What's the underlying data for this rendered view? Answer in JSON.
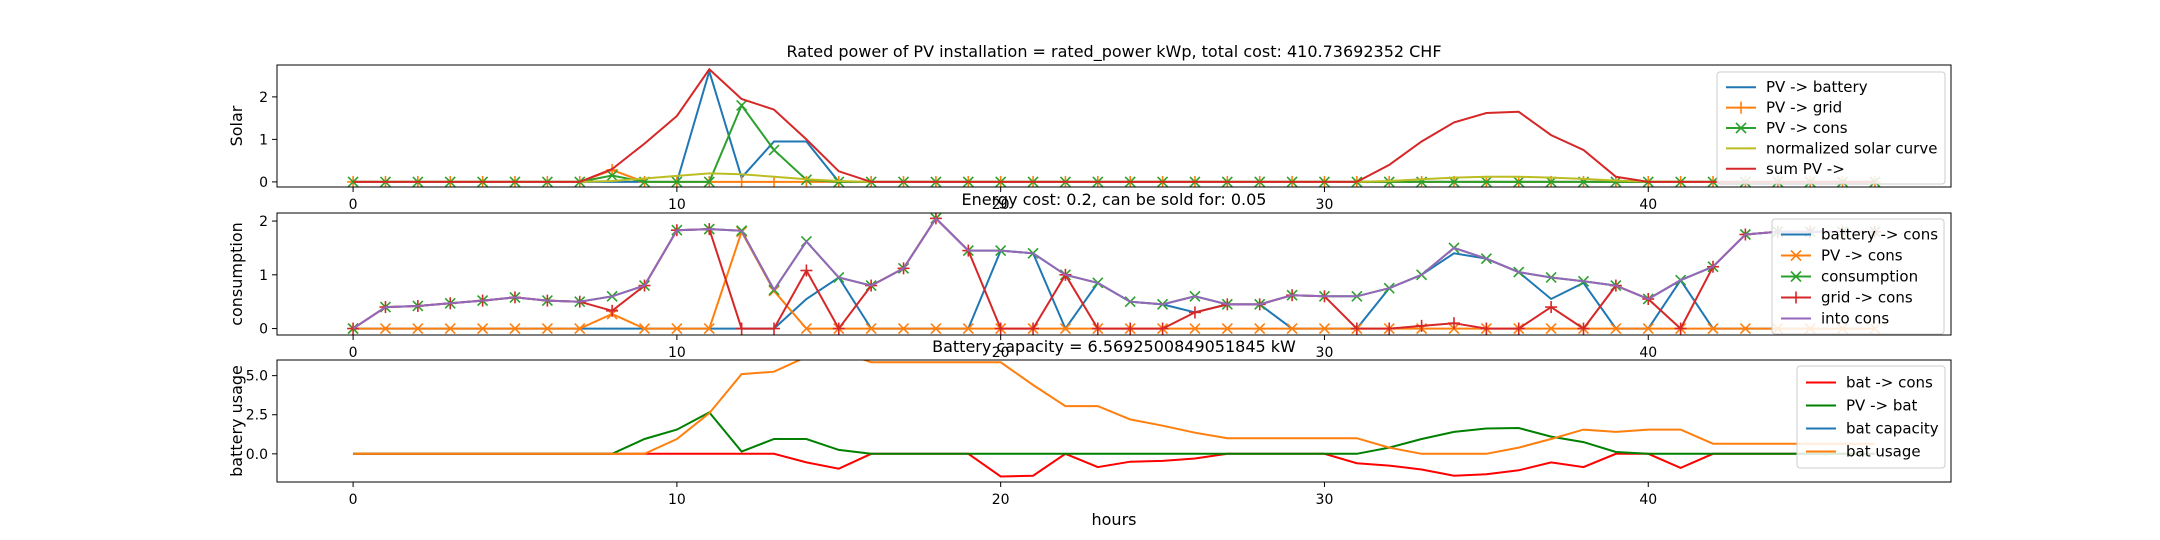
{
  "figure": {
    "xlabel": "hours"
  },
  "colors": {
    "blue": "#1f77b4",
    "orange": "#ff7f0e",
    "green": "#2ca02c",
    "red": "#d62728",
    "purple": "#9467bd",
    "olive": "#bcbd22",
    "pure_red": "#ff0000",
    "pure_green": "#008000"
  },
  "chart_data": [
    {
      "type": "line",
      "title": "Rated power of PV installation = rated_power kWp, total cost: 410.73692352 CHF",
      "ylabel": "Solar",
      "xticks": [
        "0",
        "10",
        "20",
        "30",
        "40"
      ],
      "yticks": [
        "0",
        "1",
        "2"
      ],
      "xlim": [
        -2.35,
        49.35
      ],
      "ylim": [
        -0.12,
        2.75
      ],
      "legend_position": "upper right",
      "x": [
        0,
        1,
        2,
        3,
        4,
        5,
        6,
        7,
        8,
        9,
        10,
        11,
        12,
        13,
        14,
        15,
        16,
        17,
        18,
        19,
        20,
        21,
        22,
        23,
        24,
        25,
        26,
        27,
        28,
        29,
        30,
        31,
        32,
        33,
        34,
        35,
        36,
        37,
        38,
        39,
        40,
        41,
        42,
        43,
        44,
        45,
        46,
        47
      ],
      "series": [
        {
          "name": "PV -> battery",
          "color": "#1f77b4",
          "marker": "",
          "values": [
            0,
            0,
            0,
            0,
            0,
            0,
            0,
            0,
            0,
            0,
            0,
            2.6,
            0.1,
            0.95,
            0.95,
            0,
            0,
            0,
            0,
            0,
            0,
            0,
            0,
            0,
            0,
            0,
            0,
            0,
            0,
            0,
            0,
            0,
            0,
            0,
            0,
            0,
            0,
            0,
            0,
            0,
            0,
            0,
            0,
            0,
            0,
            0,
            0,
            0
          ]
        },
        {
          "name": "PV -> grid",
          "color": "#ff7f0e",
          "marker": "+",
          "values": [
            0,
            0,
            0,
            0,
            0,
            0,
            0,
            0,
            0.28,
            0,
            0,
            0,
            0,
            0,
            0,
            0,
            0,
            0,
            0,
            0,
            0,
            0,
            0,
            0,
            0,
            0,
            0,
            0,
            0,
            0,
            0,
            0,
            0,
            0,
            0,
            0,
            0,
            0,
            0,
            0,
            0,
            0,
            0,
            0,
            0,
            0,
            0,
            0
          ]
        },
        {
          "name": "PV -> cons",
          "color": "#2ca02c",
          "marker": "x",
          "values": [
            0,
            0,
            0,
            0,
            0,
            0,
            0,
            0,
            0.15,
            0,
            0,
            0,
            1.8,
            0.75,
            0.05,
            0,
            0,
            0,
            0,
            0,
            0,
            0,
            0,
            0,
            0,
            0,
            0,
            0,
            0,
            0,
            0,
            0,
            0,
            0,
            0,
            0,
            0,
            0,
            0,
            0,
            0,
            0,
            0,
            0,
            0,
            0,
            0,
            0
          ]
        },
        {
          "name": "normalized solar curve",
          "color": "#bcbd22",
          "marker": "",
          "values": [
            0,
            0,
            0,
            0,
            0,
            0,
            0,
            0,
            0.02,
            0.08,
            0.14,
            0.2,
            0.18,
            0.12,
            0.06,
            0.02,
            0,
            0,
            0,
            0,
            0,
            0,
            0,
            0,
            0,
            0,
            0,
            0,
            0,
            0,
            0,
            0,
            0.02,
            0.06,
            0.1,
            0.12,
            0.12,
            0.1,
            0.07,
            0.03,
            0.01,
            0,
            0,
            0,
            0,
            0,
            0,
            0
          ]
        },
        {
          "name": "sum PV ->",
          "color": "#d62728",
          "marker": "",
          "values": [
            0,
            0,
            0,
            0,
            0,
            0,
            0,
            0,
            0.3,
            0.9,
            1.55,
            2.65,
            1.95,
            1.7,
            1.0,
            0.25,
            0,
            0,
            0,
            0,
            0,
            0,
            0,
            0,
            0,
            0,
            0,
            0,
            0,
            0,
            0,
            0,
            0.4,
            0.95,
            1.4,
            1.62,
            1.65,
            1.1,
            0.75,
            0.12,
            0,
            0,
            0,
            0,
            0,
            0,
            0,
            0
          ]
        }
      ]
    },
    {
      "type": "line",
      "title": "Energy cost: 0.2, can be sold for: 0.05",
      "ylabel": "consumption",
      "xticks": [
        "0",
        "10",
        "20",
        "30",
        "40"
      ],
      "yticks": [
        "0",
        "1",
        "2"
      ],
      "xlim": [
        -2.35,
        49.35
      ],
      "ylim": [
        -0.12,
        2.15
      ],
      "legend_position": "upper right",
      "x": [
        0,
        1,
        2,
        3,
        4,
        5,
        6,
        7,
        8,
        9,
        10,
        11,
        12,
        13,
        14,
        15,
        16,
        17,
        18,
        19,
        20,
        21,
        22,
        23,
        24,
        25,
        26,
        27,
        28,
        29,
        30,
        31,
        32,
        33,
        34,
        35,
        36,
        37,
        38,
        39,
        40,
        41,
        42,
        43,
        44,
        45,
        46,
        47
      ],
      "series": [
        {
          "name": "battery -> cons",
          "color": "#1f77b4",
          "marker": "",
          "values": [
            0,
            0,
            0,
            0,
            0,
            0,
            0,
            0,
            0,
            0,
            0,
            0,
            0,
            0,
            0.55,
            0.95,
            0,
            0,
            0,
            0,
            1.45,
            1.4,
            0,
            0.85,
            0.5,
            0.45,
            0.3,
            0.45,
            0.45,
            0,
            0,
            0,
            0.75,
            1.0,
            1.4,
            1.3,
            1.05,
            0.55,
            0.85,
            0,
            0,
            0.9,
            0,
            0,
            0,
            0,
            0,
            0
          ]
        },
        {
          "name": "PV -> cons",
          "color": "#ff7f0e",
          "marker": "x",
          "values": [
            0,
            0,
            0,
            0,
            0,
            0,
            0,
            0,
            0.27,
            0,
            0,
            0,
            1.8,
            0.7,
            0,
            0,
            0,
            0,
            0,
            0,
            0,
            0,
            0,
            0,
            0,
            0,
            0,
            0,
            0,
            0,
            0,
            0,
            0,
            0,
            0,
            0,
            0,
            0,
            0,
            0,
            0,
            0,
            0,
            0,
            0,
            0,
            0,
            0
          ]
        },
        {
          "name": "consumption",
          "color": "#2ca02c",
          "marker": "x",
          "values": [
            0,
            0.4,
            0.42,
            0.47,
            0.52,
            0.58,
            0.52,
            0.5,
            0.6,
            0.8,
            1.83,
            1.85,
            1.82,
            0.72,
            1.62,
            0.95,
            0.8,
            1.12,
            2.05,
            1.45,
            1.45,
            1.4,
            1.0,
            0.85,
            0.5,
            0.45,
            0.6,
            0.45,
            0.45,
            0.62,
            0.6,
            0.6,
            0.75,
            1.0,
            1.5,
            1.3,
            1.05,
            0.95,
            0.88,
            0.8,
            0.55,
            0.9,
            1.15,
            1.75,
            1.8,
            1.8,
            1.8,
            1.8
          ]
        },
        {
          "name": "grid -> cons",
          "color": "#d62728",
          "marker": "+",
          "values": [
            0,
            0.4,
            0.42,
            0.47,
            0.52,
            0.58,
            0.52,
            0.5,
            0.33,
            0.8,
            1.83,
            1.85,
            0,
            0,
            1.08,
            0,
            0.8,
            1.12,
            2.05,
            1.45,
            0,
            0,
            1.0,
            0,
            0,
            0,
            0.3,
            0.45,
            0.45,
            0.62,
            0.6,
            0,
            0,
            0.05,
            0.1,
            0,
            0,
            0.4,
            0,
            0.8,
            0.55,
            0,
            1.15,
            1.75,
            1.8,
            1.8,
            1.8,
            1.8
          ]
        },
        {
          "name": "into cons",
          "color": "#9467bd",
          "marker": "",
          "values": [
            0,
            0.4,
            0.42,
            0.47,
            0.52,
            0.58,
            0.52,
            0.5,
            0.6,
            0.8,
            1.83,
            1.85,
            1.82,
            0.72,
            1.62,
            0.95,
            0.8,
            1.12,
            2.05,
            1.45,
            1.45,
            1.4,
            1.0,
            0.85,
            0.5,
            0.45,
            0.6,
            0.45,
            0.45,
            0.62,
            0.6,
            0.6,
            0.75,
            1.0,
            1.5,
            1.3,
            1.05,
            0.95,
            0.88,
            0.8,
            0.55,
            0.9,
            1.15,
            1.75,
            1.8,
            1.8,
            1.8,
            1.8
          ]
        }
      ]
    },
    {
      "type": "line",
      "title": "Battery capacity = 6.5692500849051845 kW",
      "ylabel": "battery usage",
      "xlabel": "hours",
      "xticks": [
        "0",
        "10",
        "20",
        "30",
        "40"
      ],
      "yticks": [
        "0.0",
        "2.5",
        "5.0"
      ],
      "xlim": [
        -2.35,
        49.35
      ],
      "ylim": [
        -1.8,
        6.0
      ],
      "legend_position": "upper right",
      "x": [
        0,
        1,
        2,
        3,
        4,
        5,
        6,
        7,
        8,
        9,
        10,
        11,
        12,
        13,
        14,
        15,
        16,
        17,
        18,
        19,
        20,
        21,
        22,
        23,
        24,
        25,
        26,
        27,
        28,
        29,
        30,
        31,
        32,
        33,
        34,
        35,
        36,
        37,
        38,
        39,
        40,
        41,
        42,
        43,
        44,
        45,
        46,
        47
      ],
      "series": [
        {
          "name": "bat -> cons",
          "color": "#ff0000",
          "marker": "",
          "values": [
            0,
            0,
            0,
            0,
            0,
            0,
            0,
            0,
            0,
            0,
            0,
            0,
            0,
            0,
            -0.55,
            -0.95,
            0,
            0,
            0,
            0,
            -1.45,
            -1.4,
            0,
            -0.85,
            -0.5,
            -0.45,
            -0.3,
            0,
            0,
            0,
            0,
            -0.6,
            -0.75,
            -1.0,
            -1.4,
            -1.3,
            -1.05,
            -0.55,
            -0.85,
            0,
            0,
            -0.9,
            0,
            0,
            0,
            0,
            0,
            0
          ]
        },
        {
          "name": "PV -> bat",
          "color": "#008000",
          "marker": "",
          "values": [
            0,
            0,
            0,
            0,
            0,
            0,
            0,
            0,
            0,
            0.95,
            1.55,
            2.65,
            0.15,
            0.95,
            0.95,
            0.25,
            0,
            0,
            0,
            0,
            0,
            0,
            0,
            0,
            0,
            0,
            0,
            0,
            0,
            0,
            0,
            0,
            0.4,
            0.95,
            1.4,
            1.62,
            1.65,
            1.1,
            0.75,
            0.12,
            0,
            0,
            0,
            0,
            0,
            0,
            0,
            0
          ]
        },
        {
          "name": "bat capacity",
          "color": "#1f77b4",
          "marker": "",
          "values": [
            6.57,
            6.57,
            6.57,
            6.57,
            6.57,
            6.57,
            6.57,
            6.57,
            6.57,
            6.57,
            6.57,
            6.57,
            6.57,
            6.57,
            6.57,
            6.57,
            6.57,
            6.57,
            6.57,
            6.57,
            6.57,
            6.57,
            6.57,
            6.57,
            6.57,
            6.57,
            6.57,
            6.57,
            6.57,
            6.57,
            6.57,
            6.57,
            6.57,
            6.57,
            6.57,
            6.57,
            6.57,
            6.57,
            6.57,
            6.57,
            6.57,
            6.57,
            6.57,
            6.57,
            6.57,
            6.57,
            6.57,
            6.57
          ]
        },
        {
          "name": "bat usage",
          "color": "#ff7f0e",
          "marker": "",
          "values": [
            0,
            0,
            0,
            0,
            0,
            0,
            0,
            0,
            0,
            0,
            0.95,
            2.6,
            5.1,
            5.25,
            6.2,
            6.57,
            5.85,
            5.85,
            5.85,
            5.85,
            5.85,
            4.4,
            3.05,
            3.05,
            2.2,
            1.8,
            1.35,
            1.0,
            1.0,
            1.0,
            1.0,
            1.0,
            0.4,
            0,
            0,
            0,
            0.4,
            0.95,
            1.55,
            1.4,
            1.55,
            1.55,
            0.65,
            0.65,
            0.65,
            0.65,
            0.65,
            0.65
          ]
        }
      ]
    }
  ]
}
